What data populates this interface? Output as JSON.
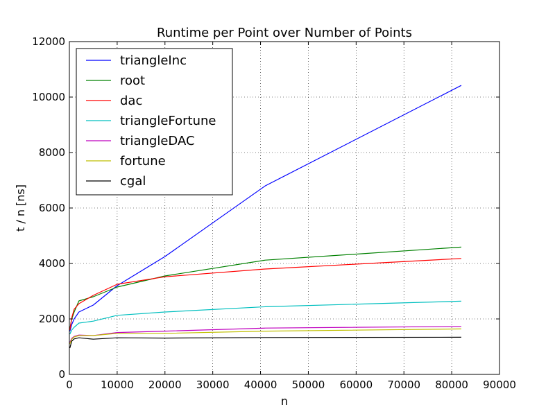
{
  "chart_data": {
    "type": "line",
    "title": "Runtime per Point over Number of Points",
    "xlabel": "n",
    "ylabel": "t / n [ns]",
    "xlim": [
      0,
      90000
    ],
    "ylim": [
      0,
      12000
    ],
    "xticks": [
      0,
      10000,
      20000,
      30000,
      40000,
      50000,
      60000,
      70000,
      80000,
      90000
    ],
    "yticks": [
      0,
      2000,
      4000,
      6000,
      8000,
      10000,
      12000
    ],
    "grid": true,
    "legend_position": "top-left",
    "series": [
      {
        "name": "triangleInc",
        "color": "#0000ff",
        "x": [
          100,
          500,
          1000,
          2000,
          5000,
          10000,
          20000,
          41000,
          82000
        ],
        "y": [
          1550,
          1800,
          2000,
          2250,
          2500,
          3200,
          4250,
          6800,
          10420
        ]
      },
      {
        "name": "root",
        "color": "#008000",
        "x": [
          100,
          500,
          1000,
          2000,
          5000,
          10000,
          20000,
          41000,
          82000
        ],
        "y": [
          1650,
          2000,
          2250,
          2650,
          2800,
          3150,
          3550,
          4120,
          4590
        ]
      },
      {
        "name": "dac",
        "color": "#ff0000",
        "x": [
          100,
          500,
          1000,
          2000,
          5000,
          10000,
          20000,
          41000,
          82000
        ],
        "y": [
          1600,
          2050,
          2350,
          2550,
          2850,
          3250,
          3520,
          3800,
          4180
        ]
      },
      {
        "name": "triangleFortune",
        "color": "#00bfbf",
        "x": [
          100,
          500,
          1000,
          2000,
          5000,
          10000,
          20000,
          41000,
          82000
        ],
        "y": [
          1450,
          1600,
          1700,
          1850,
          1920,
          2130,
          2250,
          2440,
          2640
        ]
      },
      {
        "name": "triangleDAC",
        "color": "#bf00bf",
        "x": [
          100,
          500,
          1000,
          2000,
          5000,
          10000,
          20000,
          41000,
          82000
        ],
        "y": [
          1150,
          1300,
          1370,
          1420,
          1400,
          1510,
          1560,
          1670,
          1730
        ]
      },
      {
        "name": "fortune",
        "color": "#bfbf00",
        "x": [
          100,
          500,
          1000,
          2000,
          5000,
          10000,
          20000,
          41000,
          82000
        ],
        "y": [
          1100,
          1270,
          1350,
          1400,
          1400,
          1480,
          1480,
          1560,
          1640
        ]
      },
      {
        "name": "cgal",
        "color": "#000000",
        "x": [
          100,
          500,
          1000,
          2000,
          5000,
          10000,
          20000,
          41000,
          82000
        ],
        "y": [
          950,
          1200,
          1280,
          1320,
          1270,
          1320,
          1310,
          1330,
          1340
        ]
      }
    ]
  }
}
